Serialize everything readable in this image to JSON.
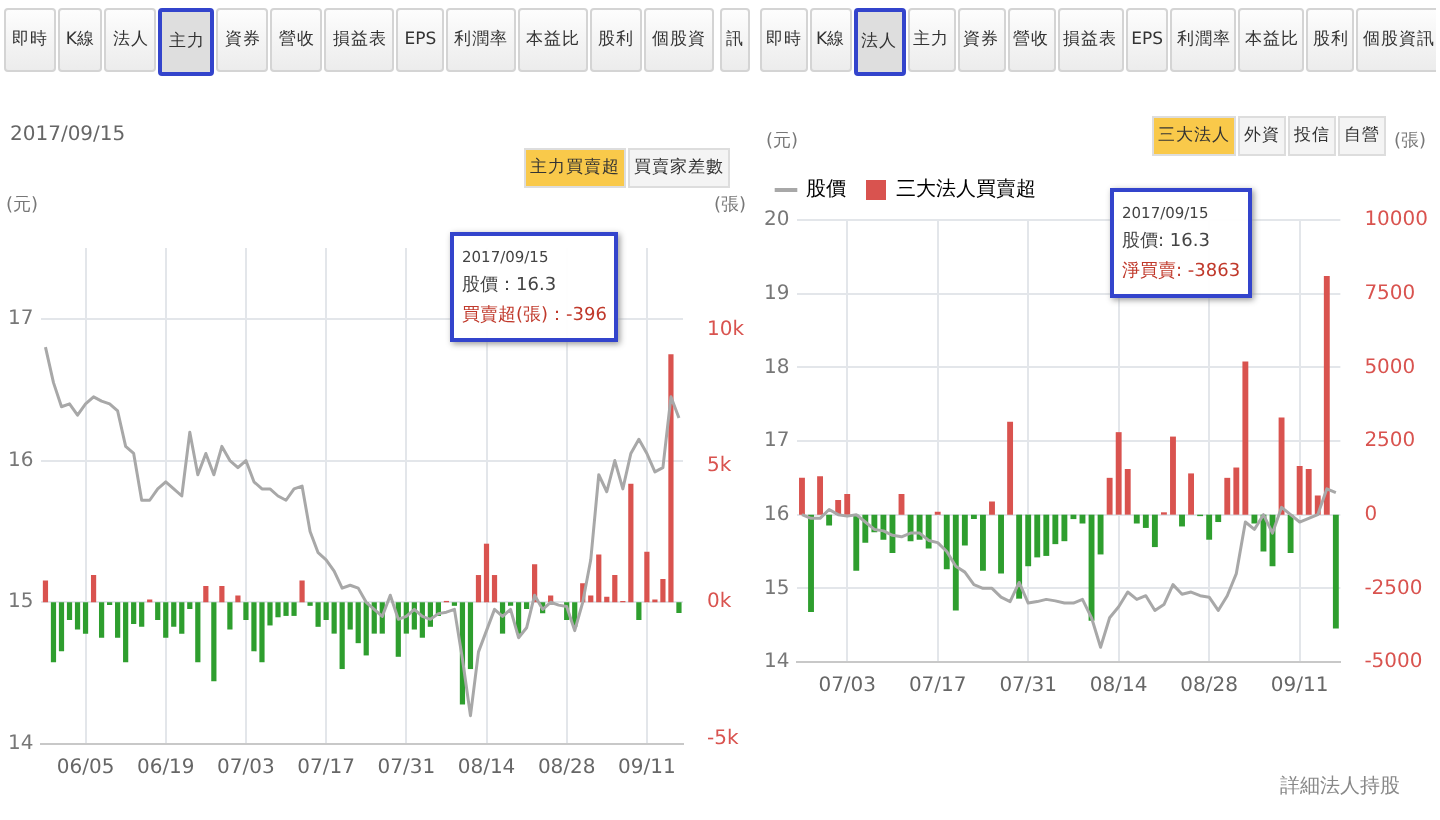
{
  "chart_data": [
    {
      "type": "other",
      "annotations": [
        "即時",
        "K線",
        "法人",
        "主力",
        "資券",
        "營收",
        "損益表",
        "EPS",
        "利潤率",
        "本益比",
        "股利",
        "個股資"
      ]
    },
    {
      "type": "bar",
      "title": "2017/09/15",
      "ylabel": "(元)",
      "y2label": "(張)",
      "categories": [
        null,
        null,
        null,
        null,
        null,
        "06/05",
        null,
        null,
        null,
        null,
        null,
        null,
        null,
        null,
        null,
        "06/19",
        null,
        null,
        null,
        null,
        null,
        null,
        null,
        null,
        null,
        "07/03",
        null,
        null,
        null,
        null,
        null,
        null,
        null,
        null,
        null,
        "07/17",
        null,
        null,
        null,
        null,
        null,
        null,
        null,
        null,
        null,
        "07/31",
        null,
        null,
        null,
        null,
        null,
        null,
        null,
        null,
        null,
        "08/14",
        null,
        null,
        null,
        null,
        null,
        null,
        null,
        null,
        null,
        "08/28",
        null,
        null,
        null,
        null,
        null,
        null,
        null,
        null,
        null,
        "09/11",
        null,
        null,
        null,
        null
      ],
      "ylim": [
        14,
        17.5
      ],
      "yticks": [
        14,
        15,
        16,
        17
      ],
      "y2lim": [
        -5200,
        13000
      ],
      "y2ticks": [
        {
          "value": -5000,
          "label": "-5k"
        },
        {
          "value": 0,
          "label": "0k"
        },
        {
          "value": 5000,
          "label": "5k"
        },
        {
          "value": 10000,
          "label": "10k"
        }
      ],
      "grid": true,
      "series": [
        {
          "type": "line",
          "color": "#a8a8a8",
          "values": [
            16.8,
            16.55,
            16.38,
            16.4,
            16.32,
            16.4,
            16.45,
            16.42,
            16.4,
            16.35,
            16.1,
            16.05,
            15.72,
            15.72,
            15.8,
            15.85,
            15.8,
            15.75,
            16.2,
            15.9,
            16.05,
            15.9,
            16.1,
            16.0,
            15.95,
            16.0,
            15.85,
            15.8,
            15.8,
            15.75,
            15.72,
            15.8,
            15.82,
            15.5,
            15.35,
            15.3,
            15.22,
            15.1,
            15.12,
            15.1,
            15.0,
            14.95,
            14.9,
            15.05,
            14.88,
            14.9,
            14.95,
            14.9,
            14.88,
            14.92,
            14.93,
            14.95,
            14.6,
            14.2,
            14.65,
            14.8,
            14.95,
            14.9,
            14.95,
            14.75,
            14.82,
            15.05,
            14.95,
            15.0,
            14.98,
            14.97,
            14.8,
            15.0,
            15.3,
            15.9,
            15.78,
            16.0,
            15.8,
            16.05,
            16.15,
            16.05,
            15.92,
            15.95,
            16.45,
            16.3
          ]
        },
        {
          "type": "bar",
          "axis": "y2",
          "color": "#d9534f",
          "values": [
            800,
            -2200,
            -1800,
            -650,
            -1000,
            -1150,
            1000,
            -1300,
            -100,
            -1300,
            -2200,
            -800,
            -900,
            100,
            -650,
            -1300,
            -900,
            -1150,
            -250,
            -2200,
            600,
            -2900,
            600,
            -1000,
            250,
            -650,
            -1800,
            -2200,
            -850,
            -550,
            -500,
            -500,
            800,
            -130,
            -900,
            -650,
            -1150,
            -2450,
            -1000,
            -1500,
            -1950,
            -1150,
            -1150,
            null,
            -2000,
            -1150,
            -1000,
            -1300,
            -900,
            -500,
            50,
            -130,
            -3750,
            -2450,
            1000,
            2150,
            1000,
            -1150,
            -130,
            -1150,
            -250,
            1400,
            -400,
            250,
            null,
            -650,
            -900,
            700,
            250,
            1750,
            200,
            1000,
            50,
            4350,
            -650,
            1850,
            100,
            850,
            9100,
            -396
          ],
          "colors": [
            "#d9534f",
            "#2e9e2e",
            "#2e9e2e",
            "#2e9e2e",
            "#2e9e2e",
            "#2e9e2e",
            "#d9534f",
            "#2e9e2e",
            "#2e9e2e",
            "#2e9e2e",
            "#2e9e2e",
            "#2e9e2e",
            "#2e9e2e",
            "#d9534f",
            "#2e9e2e",
            "#2e9e2e",
            "#2e9e2e",
            "#2e9e2e",
            "#2e9e2e",
            "#2e9e2e",
            "#d9534f",
            "#2e9e2e",
            "#d9534f",
            "#2e9e2e",
            "#d9534f",
            "#2e9e2e",
            "#2e9e2e",
            "#2e9e2e",
            "#2e9e2e",
            "#2e9e2e",
            "#2e9e2e",
            "#2e9e2e",
            "#d9534f",
            "#2e9e2e",
            "#2e9e2e",
            "#2e9e2e",
            "#2e9e2e",
            "#2e9e2e",
            "#2e9e2e",
            "#2e9e2e",
            "#2e9e2e",
            "#2e9e2e",
            "#2e9e2e",
            "#d9534f",
            "#2e9e2e",
            "#2e9e2e",
            "#2e9e2e",
            "#2e9e2e",
            "#2e9e2e",
            "#2e9e2e",
            "#d9534f",
            "#2e9e2e",
            "#2e9e2e",
            "#2e9e2e",
            "#d9534f",
            "#d9534f",
            "#d9534f",
            "#2e9e2e",
            "#2e9e2e",
            "#2e9e2e",
            "#2e9e2e",
            "#d9534f",
            "#2e9e2e",
            "#d9534f",
            "#2e9e2e",
            "#2e9e2e",
            "#2e9e2e",
            "#d9534f",
            "#d9534f",
            "#d9534f",
            "#d9534f",
            "#d9534f",
            "#d9534f",
            "#d9534f",
            "#2e9e2e",
            "#d9534f",
            "#d9534f",
            "#d9534f",
            "#d9534f",
            "#2e9e2e"
          ]
        }
      ],
      "annotations": [
        "主力買賣超",
        "買賣家差數",
        "2017/09/15",
        "股價：16.3",
        "買賣超(張)：-396"
      ]
    },
    {
      "type": "other",
      "annotations": [
        "訊",
        "即時",
        "K線",
        "法人",
        "主力",
        "資券",
        "營收",
        "損益表",
        "EPS",
        "利潤率",
        "本益比",
        "股利",
        "個股資訊"
      ]
    },
    {
      "type": "bar",
      "ylabel": "(元)",
      "y2label": "(張)",
      "legend": "top left",
      "categories": [
        null,
        null,
        null,
        null,
        null,
        "07/03",
        null,
        null,
        null,
        null,
        null,
        null,
        null,
        null,
        null,
        "07/17",
        null,
        null,
        null,
        null,
        null,
        null,
        null,
        null,
        null,
        "07/31",
        null,
        null,
        null,
        null,
        null,
        null,
        null,
        null,
        null,
        "08/14",
        null,
        null,
        null,
        null,
        null,
        null,
        null,
        null,
        null,
        "08/28",
        null,
        null,
        null,
        null,
        null,
        null,
        null,
        null,
        null,
        "09/11",
        null,
        null,
        null,
        null
      ],
      "ylim": [
        14,
        20
      ],
      "yticks": [
        14,
        15,
        16,
        17,
        18,
        19,
        20
      ],
      "y2lim": [
        -5000,
        10000
      ],
      "y2ticks": [
        -5000,
        -2500,
        0,
        2500,
        5000,
        7500,
        10000
      ],
      "grid": true,
      "series": [
        {
          "name": "股價",
          "type": "line",
          "color": "#a8a8a8",
          "values": [
            16.0,
            15.95,
            15.95,
            16.07,
            16.0,
            15.98,
            16.0,
            15.9,
            15.8,
            15.78,
            15.72,
            15.7,
            15.75,
            15.75,
            15.65,
            15.62,
            15.5,
            15.3,
            15.22,
            15.05,
            15.0,
            15.0,
            14.88,
            14.82,
            15.08,
            14.8,
            14.82,
            14.85,
            14.83,
            14.8,
            14.8,
            14.85,
            14.6,
            14.2,
            14.6,
            14.75,
            14.95,
            14.85,
            14.9,
            14.7,
            14.78,
            15.05,
            14.92,
            14.95,
            14.9,
            14.88,
            14.7,
            14.9,
            15.2,
            15.9,
            15.8,
            16.0,
            15.75,
            16.1,
            16.0,
            15.9,
            15.95,
            16.0,
            16.35,
            16.3
          ]
        },
        {
          "name": "三大法人買賣超",
          "type": "bar",
          "axis": "y2",
          "color": "#d9534f",
          "values": [
            1250,
            -3300,
            1300,
            -370,
            500,
            700,
            -1900,
            -950,
            -600,
            -850,
            -1300,
            700,
            -900,
            -850,
            -1150,
            100,
            -1850,
            -3250,
            -1050,
            -150,
            -1900,
            450,
            -2000,
            3150,
            -2850,
            -1750,
            -1450,
            -1400,
            -1000,
            -900,
            -150,
            -300,
            -3600,
            -1350,
            1250,
            2800,
            1550,
            -300,
            -450,
            -1100,
            80,
            2650,
            -400,
            1400,
            -50,
            -850,
            -250,
            1250,
            1600,
            5200,
            -300,
            -1250,
            -1750,
            3300,
            -1300,
            1650,
            1550,
            650,
            8100,
            -3863
          ],
          "colors": [
            "#d9534f",
            "#2e9e2e",
            "#d9534f",
            "#2e9e2e",
            "#d9534f",
            "#d9534f",
            "#2e9e2e",
            "#2e9e2e",
            "#2e9e2e",
            "#2e9e2e",
            "#2e9e2e",
            "#d9534f",
            "#2e9e2e",
            "#2e9e2e",
            "#2e9e2e",
            "#d9534f",
            "#2e9e2e",
            "#2e9e2e",
            "#2e9e2e",
            "#2e9e2e",
            "#2e9e2e",
            "#d9534f",
            "#2e9e2e",
            "#d9534f",
            "#2e9e2e",
            "#2e9e2e",
            "#2e9e2e",
            "#2e9e2e",
            "#2e9e2e",
            "#2e9e2e",
            "#2e9e2e",
            "#2e9e2e",
            "#2e9e2e",
            "#2e9e2e",
            "#d9534f",
            "#d9534f",
            "#d9534f",
            "#2e9e2e",
            "#2e9e2e",
            "#2e9e2e",
            "#d9534f",
            "#d9534f",
            "#2e9e2e",
            "#d9534f",
            "#2e9e2e",
            "#2e9e2e",
            "#2e9e2e",
            "#d9534f",
            "#d9534f",
            "#d9534f",
            "#2e9e2e",
            "#2e9e2e",
            "#2e9e2e",
            "#d9534f",
            "#2e9e2e",
            "#d9534f",
            "#d9534f",
            "#d9534f",
            "#d9534f",
            "#2e9e2e"
          ]
        }
      ],
      "annotations": [
        "三大法人",
        "外資",
        "投信",
        "自營",
        "2017/09/15",
        "股價: 16.3",
        "淨買賣: -3863",
        "詳細法人持股"
      ]
    }
  ]
}
